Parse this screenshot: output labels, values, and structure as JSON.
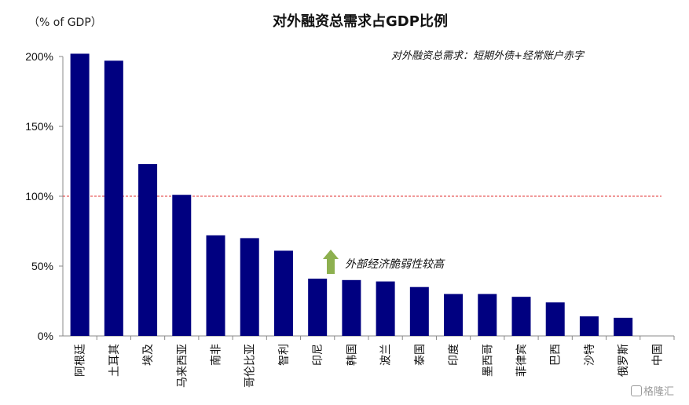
{
  "header": {
    "unit_label": "（% of GDP）",
    "title": "对外融资总需求占GDP比例",
    "subtitle": "对外融资总需求：短期外债+经常账户赤字",
    "annotation": "外部经济脆弱性较高",
    "watermark": "格隆汇"
  },
  "colors": {
    "bar": "#000080",
    "reference_line": "#e03030",
    "arrow": "#8db04f"
  },
  "chart_data": {
    "type": "bar",
    "categories": [
      "阿根廷",
      "土耳其",
      "埃及",
      "马来西亚",
      "南非",
      "哥伦比亚",
      "智利",
      "印尼",
      "韩国",
      "波兰",
      "泰国",
      "印度",
      "墨西哥",
      "菲律宾",
      "巴西",
      "沙特",
      "俄罗斯",
      "中国"
    ],
    "values": [
      202,
      197,
      123,
      101,
      72,
      70,
      61,
      41,
      40,
      39,
      35,
      30,
      30,
      28,
      24,
      14,
      13,
      0
    ],
    "ylim": [
      0,
      200
    ],
    "yticks": [
      "0%",
      "50%",
      "100%",
      "150%",
      "200%"
    ],
    "reference_line": 100,
    "title": "对外融资总需求占GDP比例",
    "xlabel": "",
    "ylabel": "（% of GDP）"
  }
}
